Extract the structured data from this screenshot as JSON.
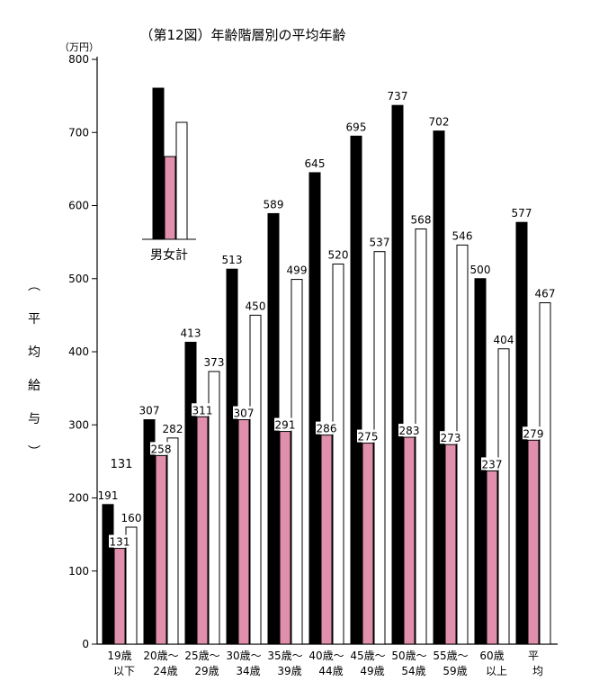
{
  "chart_data": {
    "type": "bar",
    "title": "（第12図）年齢階層別の平均年齢",
    "unit_label": "（万円）",
    "ylabel": "（平均給与）",
    "ylabel_chars": [
      "︵",
      "平",
      "均",
      "給",
      "与",
      "︶"
    ],
    "ylim": [
      0,
      800
    ],
    "yticks": [
      0,
      100,
      200,
      300,
      400,
      500,
      600,
      700,
      800
    ],
    "categories": [
      [
        "19歳",
        "以下"
      ],
      [
        "20歳～",
        "24歳"
      ],
      [
        "25歳～",
        "29歳"
      ],
      [
        "30歳～",
        "34歳"
      ],
      [
        "35歳～",
        "39歳"
      ],
      [
        "40歳～",
        "44歳"
      ],
      [
        "45歳～",
        "49歳"
      ],
      [
        "50歳～",
        "54歳"
      ],
      [
        "55歳～",
        "59歳"
      ],
      [
        "60歳",
        "以上"
      ],
      [
        "平",
        "均"
      ]
    ],
    "series": [
      {
        "name": "男",
        "values": [
          191,
          307,
          413,
          513,
          589,
          645,
          695,
          737,
          702,
          500,
          577
        ]
      },
      {
        "name": "女",
        "values": [
          131,
          258,
          311,
          307,
          291,
          286,
          275,
          283,
          273,
          237,
          279
        ]
      },
      {
        "name": "計",
        "values": [
          160,
          282,
          373,
          450,
          499,
          520,
          537,
          568,
          546,
          404,
          467
        ]
      }
    ],
    "legend": {
      "label": "男女計",
      "position": "top-left"
    },
    "extra_label": "131",
    "colors": {
      "male": "#000000",
      "female": "#e08fad",
      "total": "#ffffff",
      "stroke": "#000000"
    },
    "grid": false
  }
}
